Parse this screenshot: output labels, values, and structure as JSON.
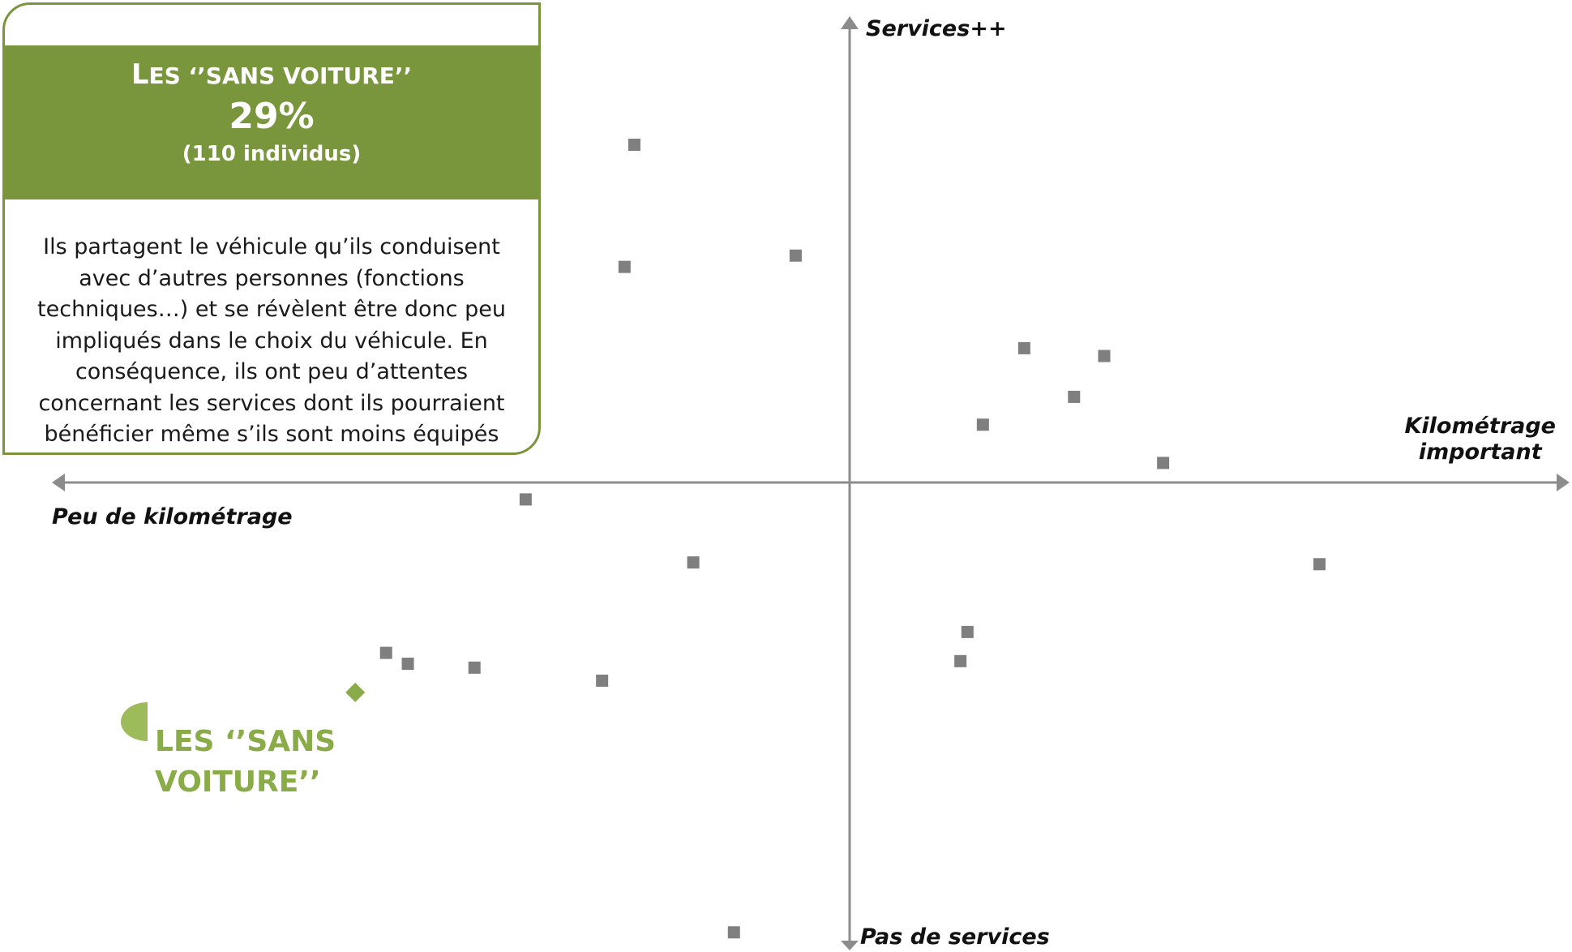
{
  "infobox": {
    "title_prefix": "L",
    "title_rest": "ES ‘’SANS VOITURE’’",
    "percent": "29%",
    "count": "(110 individus)",
    "description": "Ils partagent le véhicule qu’ils conduisent avec d’autres personnes (fonctions techniques…)  et se révèlent être donc peu impliqués dans le choix du véhicule. En conséquence, ils ont peu d’attentes concernant les services dont ils pourraient bénéficier même s’ils sont moins équipés qu’en moyenne."
  },
  "chart_data": {
    "type": "scatter",
    "title": "",
    "axes": {
      "top_label": "Services++",
      "bottom_label": "Pas de services",
      "left_label": "Peu de kilométrage",
      "right_label_line1": "Kilométrage",
      "right_label_line2": "important"
    },
    "xlim": [
      -10,
      10
    ],
    "ylim": [
      -10,
      10
    ],
    "grid": false,
    "marker_color": "#7f7f7f",
    "highlight_color": "#8aac48",
    "points": [
      {
        "x": -3.07,
        "y": 7.77
      },
      {
        "x": -3.21,
        "y": 4.96
      },
      {
        "x": -0.77,
        "y": 5.22
      },
      {
        "x": 2.49,
        "y": 3.09
      },
      {
        "x": 3.63,
        "y": 2.91
      },
      {
        "x": 3.2,
        "y": 1.97
      },
      {
        "x": 1.9,
        "y": 1.33
      },
      {
        "x": 4.47,
        "y": 0.45
      },
      {
        "x": -4.62,
        "y": -0.39
      },
      {
        "x": -2.23,
        "y": -1.84
      },
      {
        "x": 6.7,
        "y": -1.88
      },
      {
        "x": 1.68,
        "y": -3.44
      },
      {
        "x": 1.58,
        "y": -4.11
      },
      {
        "x": -6.61,
        "y": -3.92
      },
      {
        "x": -6.3,
        "y": -4.17
      },
      {
        "x": -5.35,
        "y": -4.26
      },
      {
        "x": -3.53,
        "y": -4.56
      },
      {
        "x": -1.65,
        "y": -10.35
      }
    ],
    "highlight": {
      "x": -7.05,
      "y": -4.83,
      "label_line1": "LES ‘’SANS",
      "label_line2": "VOITURE’’"
    }
  }
}
